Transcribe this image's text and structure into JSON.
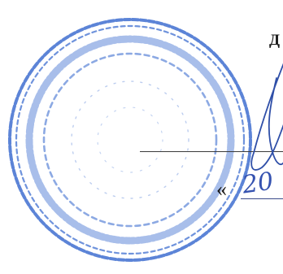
{
  "document": {
    "heading_fragment": "Д",
    "date_open_quote": "«",
    "date_day_handwritten": "20"
  },
  "seal": {
    "ink_color": "#3f6fd0"
  },
  "signature": {
    "ink_color": "#2f4fa8"
  }
}
